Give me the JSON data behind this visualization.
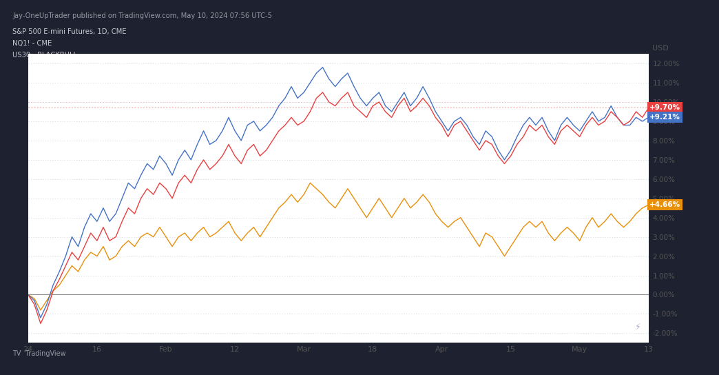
{
  "title_bar_text": "Jay-OneUpTrader published on TradingView.com, May 10, 2024 07:56 UTC-5",
  "subtitle_lines": [
    "S&P 500 E-mini Futures, 1D, CME",
    "NQ1! - CME",
    "US30 - BLACKBULL"
  ],
  "xlabel_ticks": [
    "24",
    "16",
    "Feb",
    "12",
    "Mar",
    "18",
    "Apr",
    "15",
    "May",
    "13"
  ],
  "ylim": [
    -2.5,
    12.5
  ],
  "ylabel_label": "USD",
  "end_labels": [
    {
      "text": "+9.70%",
      "bg": "#e84040",
      "value": 9.7
    },
    {
      "text": "+9.21%",
      "bg": "#4472c4",
      "value": 9.21
    },
    {
      "text": "+4.66%",
      "bg": "#e8900a",
      "value": 4.66
    }
  ],
  "header_bg": "#1e2230",
  "footer_bg": "#1e2230",
  "plot_bg": "#ffffff",
  "chart_outer_bg": "#f0f2f5",
  "grid_color": "#d1d4dc",
  "zero_line_color": "#888888",
  "text_color_header": "#9598a1",
  "text_color_chart": "#555555",
  "text_color_subtitle": "#c8cad0",
  "line_colors": [
    "#e84040",
    "#4472c4",
    "#e8900a"
  ],
  "es_data": [
    0.0,
    -0.5,
    -1.5,
    -0.8,
    0.2,
    0.8,
    1.5,
    2.2,
    1.8,
    2.5,
    3.2,
    2.8,
    3.5,
    2.8,
    3.0,
    3.8,
    4.5,
    4.2,
    5.0,
    5.5,
    5.2,
    5.8,
    5.5,
    5.0,
    5.8,
    6.2,
    5.8,
    6.5,
    7.0,
    6.5,
    6.8,
    7.2,
    7.8,
    7.2,
    6.8,
    7.5,
    7.8,
    7.2,
    7.5,
    8.0,
    8.5,
    8.8,
    9.2,
    8.8,
    9.0,
    9.5,
    10.2,
    10.5,
    10.0,
    9.8,
    10.2,
    10.5,
    9.8,
    9.5,
    9.2,
    9.8,
    10.0,
    9.5,
    9.2,
    9.8,
    10.2,
    9.5,
    9.8,
    10.2,
    9.8,
    9.2,
    8.8,
    8.2,
    8.8,
    9.0,
    8.5,
    8.0,
    7.5,
    8.0,
    7.8,
    7.2,
    6.8,
    7.2,
    7.8,
    8.2,
    8.8,
    8.5,
    8.8,
    8.2,
    7.8,
    8.5,
    8.8,
    8.5,
    8.2,
    8.8,
    9.2,
    8.8,
    9.0,
    9.5,
    9.2,
    8.8,
    9.0,
    9.5,
    9.2,
    9.7
  ],
  "nq_data": [
    0.0,
    -0.3,
    -1.2,
    -0.5,
    0.5,
    1.2,
    2.0,
    3.0,
    2.5,
    3.5,
    4.2,
    3.8,
    4.5,
    3.8,
    4.2,
    5.0,
    5.8,
    5.5,
    6.2,
    6.8,
    6.5,
    7.2,
    6.8,
    6.2,
    7.0,
    7.5,
    7.0,
    7.8,
    8.5,
    7.8,
    8.0,
    8.5,
    9.2,
    8.5,
    8.0,
    8.8,
    9.0,
    8.5,
    8.8,
    9.2,
    9.8,
    10.2,
    10.8,
    10.2,
    10.5,
    11.0,
    11.5,
    11.8,
    11.2,
    10.8,
    11.2,
    11.5,
    10.8,
    10.2,
    9.8,
    10.2,
    10.5,
    9.8,
    9.5,
    10.0,
    10.5,
    9.8,
    10.2,
    10.8,
    10.2,
    9.5,
    9.0,
    8.5,
    9.0,
    9.2,
    8.8,
    8.2,
    7.8,
    8.5,
    8.2,
    7.5,
    7.0,
    7.5,
    8.2,
    8.8,
    9.2,
    8.8,
    9.2,
    8.5,
    8.0,
    8.8,
    9.2,
    8.8,
    8.5,
    9.0,
    9.5,
    9.0,
    9.2,
    9.8,
    9.2,
    8.8,
    8.8,
    9.2,
    9.0,
    9.21
  ],
  "ym_data": [
    0.0,
    -0.2,
    -0.8,
    -0.3,
    0.2,
    0.5,
    1.0,
    1.5,
    1.2,
    1.8,
    2.2,
    2.0,
    2.5,
    1.8,
    2.0,
    2.5,
    2.8,
    2.5,
    3.0,
    3.2,
    3.0,
    3.5,
    3.0,
    2.5,
    3.0,
    3.2,
    2.8,
    3.2,
    3.5,
    3.0,
    3.2,
    3.5,
    3.8,
    3.2,
    2.8,
    3.2,
    3.5,
    3.0,
    3.5,
    4.0,
    4.5,
    4.8,
    5.2,
    4.8,
    5.2,
    5.8,
    5.5,
    5.2,
    4.8,
    4.5,
    5.0,
    5.5,
    5.0,
    4.5,
    4.0,
    4.5,
    5.0,
    4.5,
    4.0,
    4.5,
    5.0,
    4.5,
    4.8,
    5.2,
    4.8,
    4.2,
    3.8,
    3.5,
    3.8,
    4.0,
    3.5,
    3.0,
    2.5,
    3.2,
    3.0,
    2.5,
    2.0,
    2.5,
    3.0,
    3.5,
    3.8,
    3.5,
    3.8,
    3.2,
    2.8,
    3.2,
    3.5,
    3.2,
    2.8,
    3.5,
    4.0,
    3.5,
    3.8,
    4.2,
    3.8,
    3.5,
    3.8,
    4.2,
    4.5,
    4.66
  ]
}
